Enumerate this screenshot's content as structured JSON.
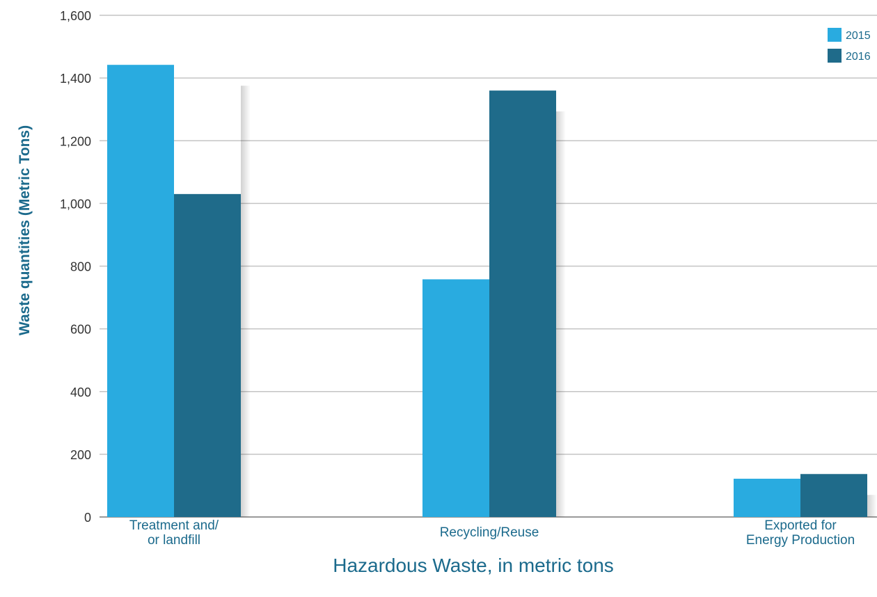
{
  "chart_data": {
    "type": "bar",
    "title": "",
    "xlabel": "Hazardous Waste, in metric tons",
    "ylabel": "Waste quantities (Metric Tons)",
    "ylim": [
      0,
      1600
    ],
    "yticks": [
      0,
      200,
      400,
      600,
      800,
      1000,
      1200,
      1400,
      1600
    ],
    "ytick_labels": [
      "0",
      "200",
      "400",
      "600",
      "800",
      "1,000",
      "1,200",
      "1,400",
      "1,600"
    ],
    "grid": "horizontal",
    "legend_position": "top-right",
    "categories": [
      [
        "Treatment and/",
        "or landfill"
      ],
      [
        "Recycling/Reuse"
      ],
      [
        "Exported for",
        "Energy Production"
      ]
    ],
    "series": [
      {
        "name": "2015",
        "color": "#29abe0",
        "values": [
          1442,
          758,
          122
        ]
      },
      {
        "name": "2016",
        "color": "#1f6b8a",
        "values": [
          1030,
          1360,
          137
        ]
      }
    ]
  }
}
